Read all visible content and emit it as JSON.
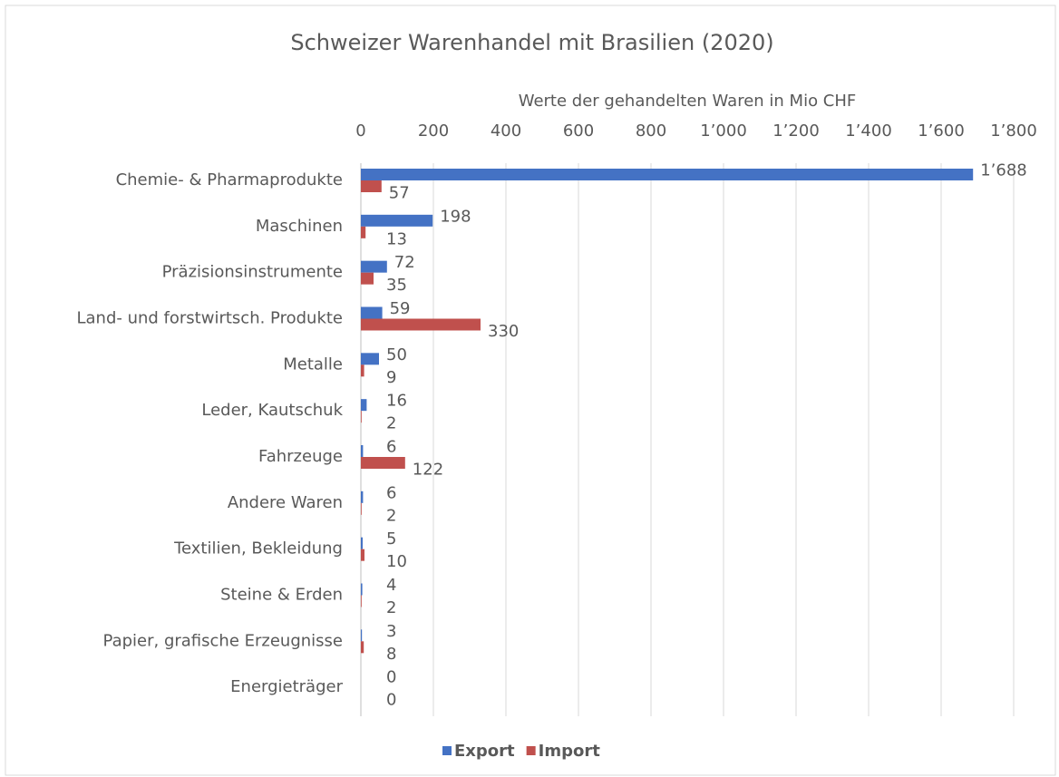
{
  "chart_data": {
    "type": "hbar",
    "title": "Schweizer Warenhandel mit Brasilien (2020)",
    "x_label": "Werte der gehandelten Waren in Mio CHF",
    "categories": [
      "Chemie- & Pharmaprodukte",
      "Maschinen",
      "Präzisionsinstrumente",
      "Land- und forstwirtsch. Produkte",
      "Metalle",
      "Leder, Kautschuk",
      "Fahrzeuge",
      "Andere Waren",
      "Textilien, Bekleidung",
      "Steine & Erden",
      "Papier, grafische Erzeugnisse",
      "Energieträger"
    ],
    "series": [
      {
        "name": "Export",
        "color": "#4472c4",
        "values": [
          1688,
          198,
          72,
          59,
          50,
          16,
          6,
          6,
          5,
          4,
          3,
          0
        ],
        "value_labels": [
          "1’688",
          "198",
          "72",
          "59",
          "50",
          "16",
          "6",
          "6",
          "5",
          "4",
          "3",
          "0"
        ]
      },
      {
        "name": "Import",
        "color": "#c0504d",
        "values": [
          57,
          13,
          35,
          330,
          9,
          2,
          122,
          2,
          10,
          2,
          8,
          0
        ]
      }
    ],
    "xlim": [
      0,
      1800
    ],
    "xticks": [
      0,
      200,
      400,
      600,
      800,
      {
        "value": 1000,
        "label": "1’000"
      },
      {
        "value": 1200,
        "label": "1’200"
      },
      {
        "value": 1400,
        "label": "1’400"
      },
      {
        "value": 1600,
        "label": "1’600"
      },
      {
        "value": 1800,
        "label": "1’800"
      }
    ],
    "grid": true,
    "legend": "bottom"
  }
}
